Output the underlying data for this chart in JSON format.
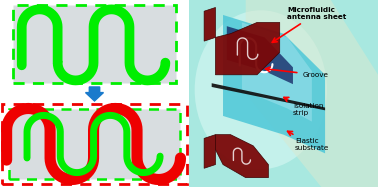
{
  "fig_width": 3.78,
  "fig_height": 1.87,
  "dpi": 100,
  "left_bg": "#d8dde0",
  "green_color": "#00ee00",
  "red_color": "#ee0000",
  "blue_color": "#1a7acc",
  "right_bg_color": "#a8e8e0",
  "cyan_body": "#50c8d8",
  "dark_red": "#7a0000",
  "black_strip": "#111111",
  "label_texts": [
    "Microfluidic\nantenna sheet",
    "Groove",
    "Isolation\nstrip",
    "Elastic\nsubstrate"
  ]
}
